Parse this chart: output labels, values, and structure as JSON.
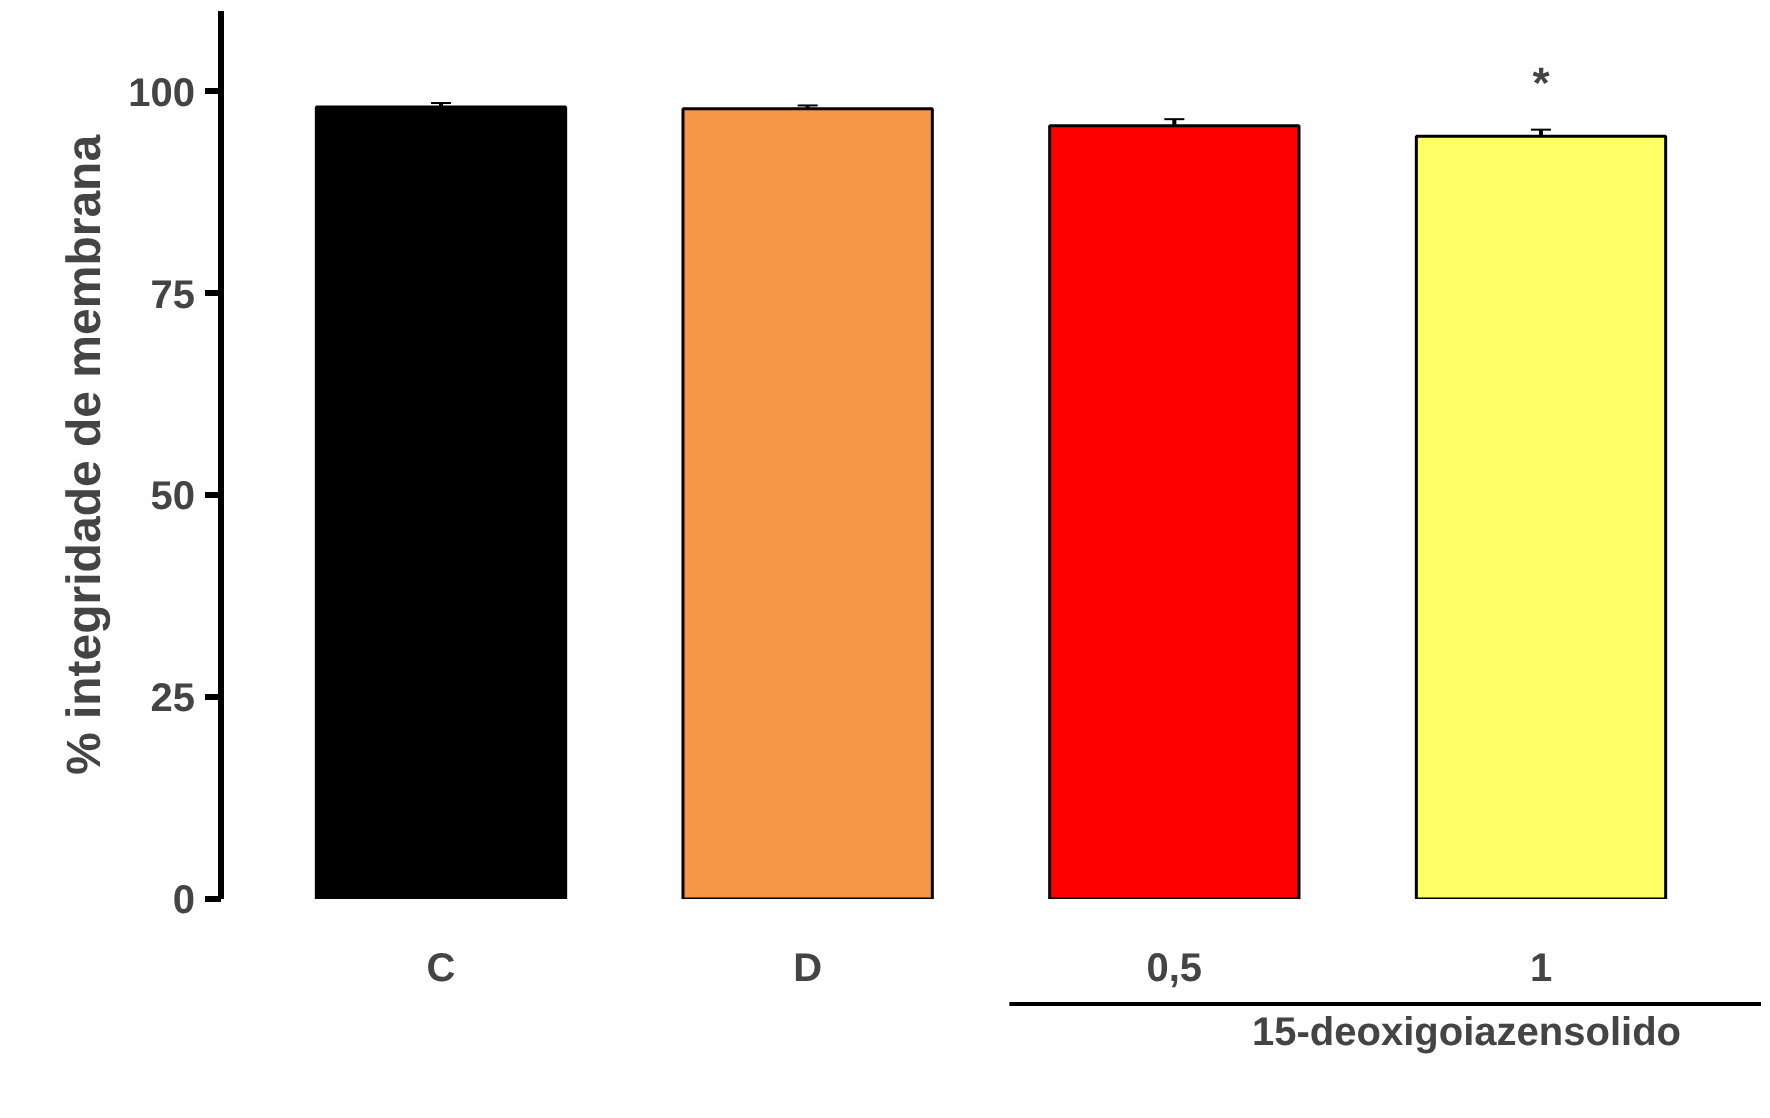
{
  "chart_data": {
    "type": "bar",
    "ylabel": "% integridade de membrana",
    "categories": [
      "C",
      "D",
      "0,5",
      "1"
    ],
    "values": [
      98.1,
      97.9,
      95.8,
      94.5
    ],
    "errors": [
      0.5,
      0.4,
      0.8,
      0.8
    ],
    "colors": [
      "#000000",
      "#f79646",
      "#ff0000",
      "#ffff66"
    ],
    "ylim": [
      0,
      110
    ],
    "yticks": [
      0,
      25,
      50,
      75,
      100
    ],
    "grid": false,
    "annotations": [
      "*",
      "15-deoxigoiazensolido"
    ]
  }
}
